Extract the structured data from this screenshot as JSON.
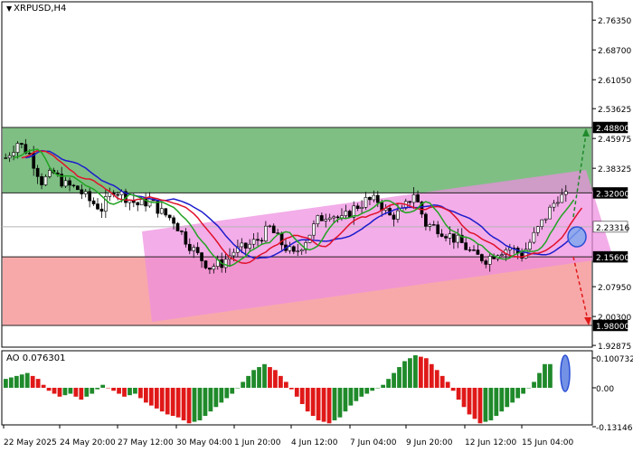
{
  "chart_title": "XRPUSD,H4",
  "indicator_label": "AO 0.076301",
  "colors": {
    "buy_zone": "#7fbf84",
    "sell_zone": "#f7a9aa",
    "channel": "#ee8ee0",
    "fast_ma": "#22a322",
    "mid_ma": "#e0102a",
    "slow_ma": "#1c1ccc",
    "ao_up": "#1f8a2a",
    "ao_down": "#e01818"
  },
  "price_axis": {
    "ticks": [
      {
        "label": "2.76350",
        "value": 2.7635
      },
      {
        "label": "2.68700",
        "value": 2.687
      },
      {
        "label": "2.61050",
        "value": 2.6105
      },
      {
        "label": "2.53625",
        "value": 2.53625
      },
      {
        "label": "2.45975",
        "value": 2.45975
      },
      {
        "label": "2.38325",
        "value": 2.38325
      },
      {
        "label": "2.07950",
        "value": 2.0795
      },
      {
        "label": "2.00300",
        "value": 2.003
      },
      {
        "label": "1.92875",
        "value": 1.92875
      }
    ],
    "levels": [
      {
        "label": "2.48800",
        "value": 2.488,
        "style": "dark"
      },
      {
        "label": "2.32000",
        "value": 2.32,
        "style": "dark"
      },
      {
        "label": "2.23316",
        "value": 2.23316,
        "style": "grey"
      },
      {
        "label": "2.15600",
        "value": 2.156,
        "style": "dark"
      },
      {
        "label": "1.98000",
        "value": 1.98,
        "style": "dark"
      }
    ]
  },
  "ao_axis": {
    "ticks": [
      {
        "label": "0.100732",
        "value": 0.100732
      },
      {
        "label": "0.00",
        "value": 0
      },
      {
        "label": "-0.131465",
        "value": -0.131465
      }
    ]
  },
  "time_axis": [
    "22 May 2025",
    "24 May 20:00",
    "27 May 12:00",
    "30 May 04:00",
    "1 Jun 20:00",
    "4 Jun 12:00",
    "7 Jun 04:00",
    "9 Jun 20:00",
    "12 Jun 12:00",
    "15 Jun 04:00"
  ],
  "chart_data": {
    "type": "line",
    "title": "XRPUSD,H4",
    "price_range": [
      1.92875,
      2.7635
    ],
    "zones": [
      {
        "from": 2.32,
        "to": 2.488,
        "color": "#7fbf84"
      },
      {
        "from": 1.98,
        "to": 2.156,
        "color": "#f7a9aa"
      }
    ],
    "close_approx": [
      2.41,
      2.45,
      2.42,
      2.35,
      2.37,
      2.34,
      2.33,
      2.3,
      2.28,
      2.33,
      2.31,
      2.29,
      2.3,
      2.27,
      2.25,
      2.2,
      2.16,
      2.13,
      2.14,
      2.17,
      2.18,
      2.2,
      2.23,
      2.19,
      2.16,
      2.2,
      2.25,
      2.27,
      2.25,
      2.28,
      2.3,
      2.3,
      2.26,
      2.27,
      2.32,
      2.24,
      2.23,
      2.21,
      2.19,
      2.16,
      2.15,
      2.17,
      2.18,
      2.16,
      2.21,
      2.26,
      2.31
    ],
    "ao_values": [
      0.03,
      0.04,
      0.05,
      0.03,
      -0.01,
      -0.03,
      -0.02,
      -0.04,
      -0.02,
      0.01,
      -0.01,
      -0.03,
      -0.02,
      -0.05,
      -0.07,
      -0.09,
      -0.1,
      -0.12,
      -0.11,
      -0.08,
      -0.05,
      -0.02,
      0.02,
      0.06,
      0.08,
      0.06,
      0.02,
      -0.03,
      -0.08,
      -0.11,
      -0.12,
      -0.1,
      -0.06,
      -0.03,
      -0.01,
      0.01,
      0.05,
      0.09,
      0.11,
      0.1,
      0.06,
      0.02,
      -0.04,
      -0.09,
      -0.12,
      -0.11,
      -0.08,
      -0.05,
      -0.02,
      0.02,
      0.08
    ]
  }
}
